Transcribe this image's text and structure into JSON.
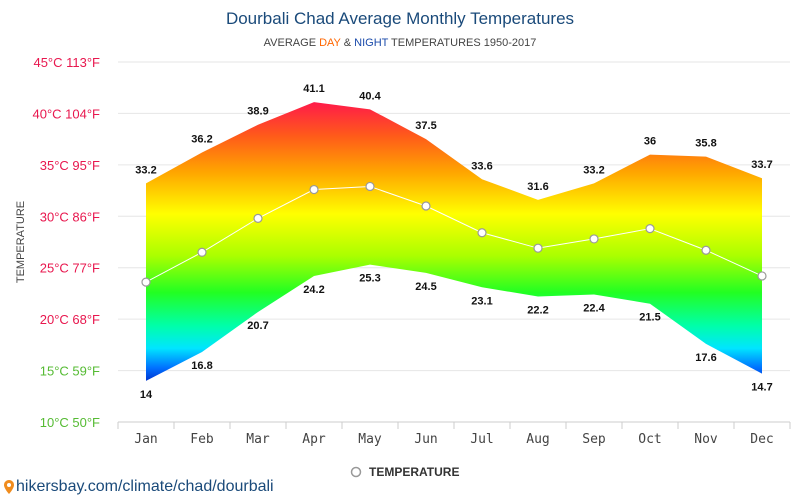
{
  "chart_data": {
    "type": "area",
    "title": "Dourbali Chad Average Monthly Temperatures",
    "subtitle": {
      "prefix": "AVERAGE ",
      "day": "DAY",
      "amp": " & ",
      "night": "NIGHT",
      "suffix": " TEMPERATURES 1950-2017",
      "day_color": "#ff6600",
      "night_color": "#1a4aaa"
    },
    "ylabel": "TEMPERATURE",
    "categories": [
      "Jan",
      "Feb",
      "Mar",
      "Apr",
      "May",
      "Jun",
      "Jul",
      "Aug",
      "Sep",
      "Oct",
      "Nov",
      "Dec"
    ],
    "y_ticks": [
      {
        "value": 45,
        "label": "45°C 113°F",
        "color": "#e8174e"
      },
      {
        "value": 40,
        "label": "40°C 104°F",
        "color": "#e8174e"
      },
      {
        "value": 35,
        "label": "35°C 95°F",
        "color": "#e8174e"
      },
      {
        "value": 30,
        "label": "30°C 86°F",
        "color": "#e8174e"
      },
      {
        "value": 25,
        "label": "25°C 77°F",
        "color": "#e8174e"
      },
      {
        "value": 20,
        "label": "20°C 68°F",
        "color": "#e8174e"
      },
      {
        "value": 15,
        "label": "15°C 59°F",
        "color": "#55bb33"
      },
      {
        "value": 10,
        "label": "10°C 50°F",
        "color": "#55bb33"
      }
    ],
    "ylim": [
      10,
      45
    ],
    "grid": true,
    "series": [
      {
        "values": [
          33.2,
          36.2,
          38.9,
          41.1,
          40.4,
          37.5,
          33.6,
          31.6,
          33.2,
          36,
          35.8,
          33.7
        ]
      },
      {
        "values": [
          14,
          16.8,
          20.7,
          24.2,
          25.3,
          24.5,
          23.1,
          22.2,
          22.4,
          21.5,
          17.6,
          14.7
        ]
      },
      {
        "name": "TEMPERATURE",
        "values": [
          23.6,
          26.5,
          29.8,
          32.6,
          32.9,
          31.0,
          28.4,
          26.9,
          27.8,
          28.8,
          26.7,
          24.2
        ]
      }
    ],
    "legend": {
      "label": "TEMPERATURE",
      "position": "bottom-center"
    }
  },
  "footer": {
    "text": "hikersbay.com/climate/chad/dourbali"
  }
}
